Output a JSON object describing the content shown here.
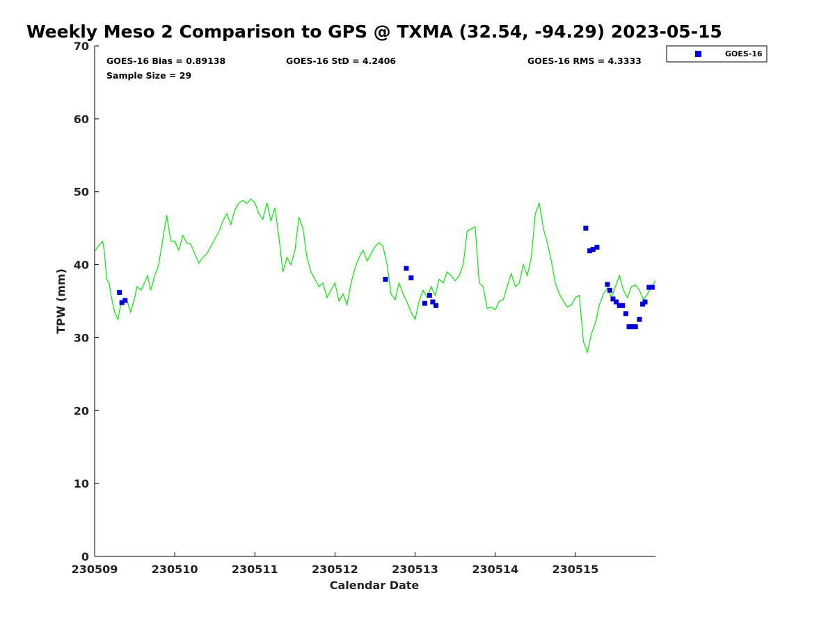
{
  "chart_data": {
    "type": "scatter",
    "title": "Weekly Meso 2 Comparison to GPS @ TXMA (32.54, -94.29) 2023-05-15",
    "xlabel": "Calendar Date",
    "ylabel": "TPW (mm)",
    "x_ticks": [
      "230509",
      "230510",
      "230511",
      "230512",
      "230513",
      "230514",
      "230515"
    ],
    "y_ticks": [
      "0",
      "10",
      "20",
      "30",
      "40",
      "50",
      "60",
      "70"
    ],
    "xlim": [
      0,
      7
    ],
    "ylim": [
      0,
      70
    ],
    "grid": false,
    "legend": {
      "placement": "outside-top-right",
      "entries": [
        "GOES-16"
      ]
    },
    "stats": {
      "bias": "GOES-16 Bias = 0.89138",
      "std": "GOES-16 StD = 4.2406",
      "rms": "GOES-16 RMS = 4.3333",
      "sample_size": "Sample Size = 29"
    },
    "series": [
      {
        "name": "GOES-16",
        "kind": "scatter",
        "color": "#0000dd",
        "x": [
          0.31,
          0.34,
          0.38,
          3.63,
          3.89,
          3.95,
          4.12,
          4.18,
          4.22,
          4.26,
          6.13,
          6.18,
          6.22,
          6.27,
          6.4,
          6.43,
          6.47,
          6.51,
          6.55,
          6.59,
          6.63,
          6.67,
          6.71,
          6.75,
          6.8,
          6.84,
          6.87,
          6.92,
          6.96
        ],
        "y": [
          36.2,
          34.8,
          35.1,
          38.0,
          39.5,
          38.2,
          34.7,
          35.8,
          34.9,
          34.4,
          45.0,
          41.9,
          42.1,
          42.4,
          37.3,
          36.5,
          35.3,
          34.9,
          34.4,
          34.4,
          33.3,
          31.5,
          31.5,
          31.5,
          32.5,
          34.6,
          34.9,
          36.9,
          36.9
        ]
      },
      {
        "kind": "line",
        "color": "#00ee00",
        "x": [
          0.0,
          0.05,
          0.1,
          0.12,
          0.15,
          0.18,
          0.21,
          0.25,
          0.27,
          0.29,
          0.33,
          0.36,
          0.4,
          0.45,
          0.5,
          0.53,
          0.58,
          0.62,
          0.66,
          0.7,
          0.75,
          0.8,
          0.85,
          0.9,
          0.95,
          0.97,
          1.0,
          1.05,
          1.1,
          1.15,
          1.2,
          1.25,
          1.3,
          1.35,
          1.4,
          1.45,
          1.5,
          1.55,
          1.6,
          1.65,
          1.7,
          1.75,
          1.8,
          1.85,
          1.9,
          1.95,
          2.0,
          2.05,
          2.1,
          2.15,
          2.2,
          2.25,
          2.3,
          2.35,
          2.4,
          2.45,
          2.5,
          2.55,
          2.6,
          2.65,
          2.7,
          2.75,
          2.8,
          2.85,
          2.9,
          2.95,
          3.0,
          3.05,
          3.1,
          3.15,
          3.2,
          3.25,
          3.3,
          3.35,
          3.4,
          3.45,
          3.5,
          3.55,
          3.6,
          3.65,
          3.7,
          3.75,
          3.8,
          3.85,
          3.9,
          3.95,
          4.0,
          4.05,
          4.1,
          4.15,
          4.2,
          4.25,
          4.3,
          4.35,
          4.4,
          4.45,
          4.5,
          4.55,
          4.6,
          4.65,
          4.7,
          4.75,
          4.8,
          4.85,
          4.9,
          4.95,
          5.0,
          5.05,
          5.1,
          5.15,
          5.2,
          5.25,
          5.3,
          5.35,
          5.4,
          5.45,
          5.5,
          5.55,
          5.6,
          5.65,
          5.7,
          5.75,
          5.8,
          5.85,
          5.9,
          5.95,
          6.0,
          6.05,
          6.1,
          6.15,
          6.2,
          6.25,
          6.3,
          6.35,
          6.4,
          6.45,
          6.5,
          6.55,
          6.6,
          6.65,
          6.7,
          6.75,
          6.8,
          6.85,
          6.9,
          6.95,
          7.0
        ],
        "y": [
          41.8,
          42.6,
          43.2,
          42.0,
          38.0,
          37.5,
          35.5,
          33.5,
          33.0,
          32.5,
          34.8,
          35.0,
          35.2,
          33.5,
          35.5,
          37.0,
          36.5,
          37.5,
          38.5,
          36.5,
          38.5,
          40.0,
          43.5,
          46.8,
          43.3,
          43.2,
          43.2,
          42.0,
          44.0,
          43.0,
          42.8,
          41.5,
          40.2,
          41.0,
          41.5,
          42.5,
          43.5,
          44.5,
          46.0,
          47.0,
          45.5,
          47.5,
          48.5,
          48.8,
          48.4,
          49.0,
          48.5,
          47.0,
          46.2,
          48.5,
          46.0,
          47.8,
          43.8,
          39.0,
          41.0,
          40.0,
          42.0,
          46.5,
          45.0,
          41.0,
          39.0,
          38.0,
          37.0,
          37.5,
          35.5,
          36.5,
          37.5,
          35.0,
          36.0,
          34.5,
          37.5,
          39.5,
          41.0,
          42.0,
          40.5,
          41.5,
          42.5,
          43.0,
          42.5,
          40.0,
          36.0,
          35.2,
          37.5,
          36.0,
          34.8,
          33.5,
          32.5,
          35.0,
          36.5,
          35.5,
          37.0,
          35.8,
          38.0,
          37.5,
          39.0,
          38.5,
          37.8,
          38.5,
          40.0,
          44.6,
          44.9,
          45.2,
          37.5,
          37.0,
          34.0,
          34.2,
          33.8,
          35.0,
          35.2,
          37.0,
          38.8,
          37.0,
          37.5,
          40.0,
          38.5,
          41.0,
          47.0,
          48.5,
          45.0,
          43.0,
          40.5,
          37.5,
          36.0,
          35.0,
          34.2,
          34.5,
          35.5,
          35.8,
          29.5,
          28.0,
          30.5,
          32.0,
          34.5,
          36.0,
          36.8,
          35.5,
          37.0,
          38.5,
          36.5,
          35.5,
          37.0,
          37.2,
          36.5,
          35.2,
          36.0,
          37.0,
          37.8
        ]
      }
    ]
  }
}
